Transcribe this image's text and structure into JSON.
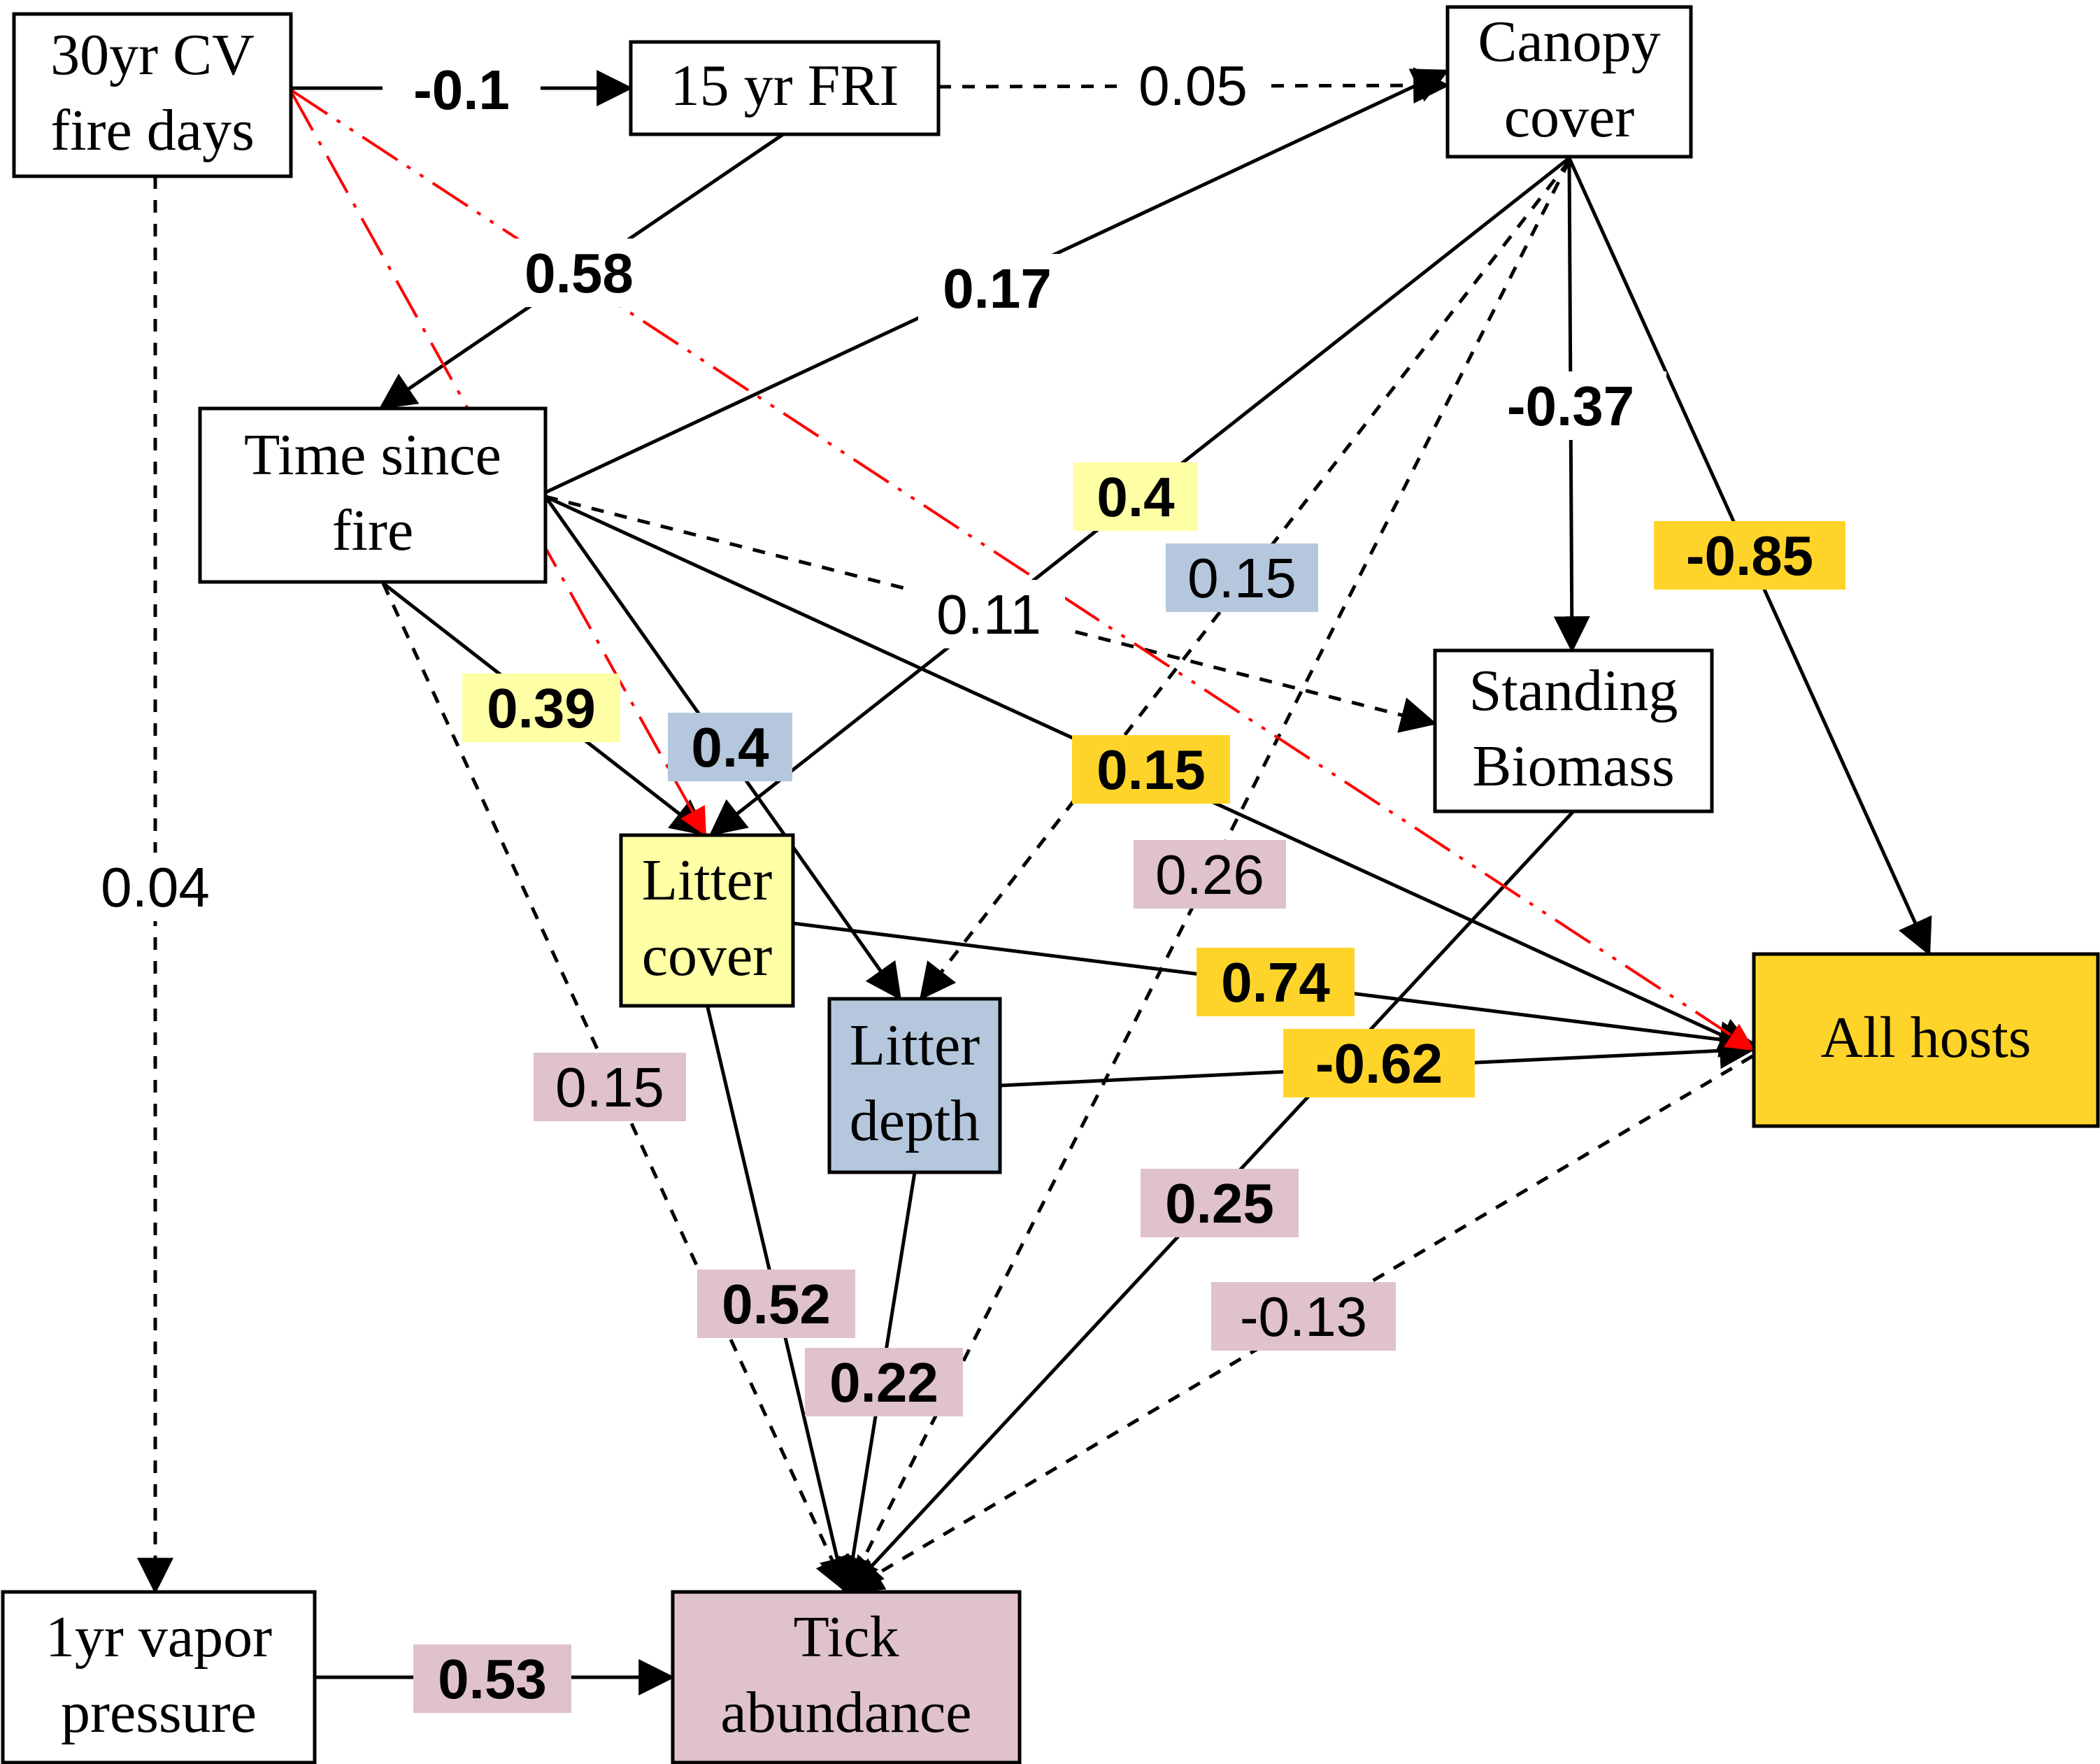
{
  "colors": {
    "litter_cover": "#ffffa6",
    "litter_depth": "#b4c7dc",
    "all_hosts": "#ffd42a",
    "tick": "#dfc2cb",
    "white": "#ffffff",
    "red": "#ff0000",
    "black": "#000000"
  },
  "nodes": [
    {
      "id": "cv_fire_days",
      "lines": [
        "30yr CV",
        "fire days"
      ],
      "fill": "white"
    },
    {
      "id": "fri15",
      "lines": [
        "15 yr FRI"
      ],
      "fill": "white"
    },
    {
      "id": "canopy_cover",
      "lines": [
        "Canopy",
        "cover"
      ],
      "fill": "white"
    },
    {
      "id": "time_since_fire",
      "lines": [
        "Time since",
        "fire"
      ],
      "fill": "white"
    },
    {
      "id": "standing_biomass",
      "lines": [
        "Standing",
        "Biomass"
      ],
      "fill": "white"
    },
    {
      "id": "litter_cover",
      "lines": [
        "Litter",
        "cover"
      ],
      "fill": "litter_cover"
    },
    {
      "id": "litter_depth",
      "lines": [
        "Litter",
        "depth"
      ],
      "fill": "litter_depth"
    },
    {
      "id": "all_hosts",
      "lines": [
        "All hosts"
      ],
      "fill": "all_hosts"
    },
    {
      "id": "vapor_pressure",
      "lines": [
        "1yr vapor",
        "pressure"
      ],
      "fill": "white"
    },
    {
      "id": "tick_abundance",
      "lines": [
        "Tick",
        "abundance"
      ],
      "fill": "tick"
    }
  ],
  "edges": [
    {
      "id": "cv-fri",
      "from": "cv_fire_days",
      "to": "fri15",
      "style": "solid",
      "label": "-0.1",
      "bold": true,
      "label_bg": "white"
    },
    {
      "id": "fri-canopy",
      "from": "fri15",
      "to": "canopy_cover",
      "style": "dashed",
      "label": "0.05",
      "bold": false,
      "label_bg": "white"
    },
    {
      "id": "fri-tsf",
      "from": "fri15",
      "to": "time_since_fire",
      "style": "solid",
      "label": "0.58",
      "bold": true,
      "label_bg": "white"
    },
    {
      "id": "tsf-canopy",
      "from": "time_since_fire",
      "to": "canopy_cover",
      "style": "solid",
      "label": "0.17",
      "bold": true,
      "label_bg": "white"
    },
    {
      "id": "cv-vapor",
      "from": "cv_fire_days",
      "to": "vapor_pressure",
      "style": "dashed",
      "label": "0.04",
      "bold": false,
      "label_bg": "white"
    },
    {
      "id": "canopy-litter",
      "from": "canopy_cover",
      "to": "litter_cover",
      "style": "solid",
      "label": "0.4",
      "bold": true,
      "label_bg": "litter_cover"
    },
    {
      "id": "canopy-depth",
      "from": "canopy_cover",
      "to": "litter_depth",
      "style": "dashed",
      "label": "0.15",
      "bold": false,
      "label_bg": "litter_depth"
    },
    {
      "id": "canopy-biomass",
      "from": "canopy_cover",
      "to": "standing_biomass",
      "style": "solid",
      "label": "-0.37",
      "bold": true,
      "label_bg": "white"
    },
    {
      "id": "canopy-hosts",
      "from": "canopy_cover",
      "to": "all_hosts",
      "style": "solid",
      "label": "-0.85",
      "bold": true,
      "label_bg": "all_hosts"
    },
    {
      "id": "tsf-biomass",
      "from": "time_since_fire",
      "to": "standing_biomass",
      "style": "dashed",
      "label": "0.11",
      "bold": false,
      "label_bg": "white"
    },
    {
      "id": "tsf-litter",
      "from": "time_since_fire",
      "to": "litter_cover",
      "style": "solid",
      "label": "0.39",
      "bold": true,
      "label_bg": "litter_cover"
    },
    {
      "id": "tsf-depth",
      "from": "time_since_fire",
      "to": "litter_depth",
      "style": "solid",
      "label": "0.4",
      "bold": true,
      "label_bg": "litter_depth"
    },
    {
      "id": "tsf-hosts",
      "from": "time_since_fire",
      "to": "all_hosts",
      "style": "solid",
      "label": "0.15",
      "bold": true,
      "label_bg": "all_hosts"
    },
    {
      "id": "canopy-tick",
      "from": "canopy_cover",
      "to": "tick_abundance",
      "style": "dashed",
      "label": "0.26",
      "bold": false,
      "label_bg": "tick"
    },
    {
      "id": "tsf-tick",
      "from": "time_since_fire",
      "to": "tick_abundance",
      "style": "dashed",
      "label": "0.15",
      "bold": false,
      "label_bg": "tick"
    },
    {
      "id": "littercover-hosts",
      "from": "litter_cover",
      "to": "all_hosts",
      "style": "solid",
      "label": "0.74",
      "bold": true,
      "label_bg": "all_hosts"
    },
    {
      "id": "depth-hosts",
      "from": "litter_depth",
      "to": "all_hosts",
      "style": "solid",
      "label": "-0.62",
      "bold": true,
      "label_bg": "all_hosts"
    },
    {
      "id": "biomass-tick",
      "from": "standing_biomass",
      "to": "tick_abundance",
      "style": "solid",
      "label": "0.25",
      "bold": true,
      "label_bg": "tick"
    },
    {
      "id": "hosts-tick",
      "from": "all_hosts",
      "to": "tick_abundance",
      "style": "dashed",
      "label": "-0.13",
      "bold": false,
      "label_bg": "tick"
    },
    {
      "id": "littercover-tick",
      "from": "litter_cover",
      "to": "tick_abundance",
      "style": "solid",
      "label": "0.52",
      "bold": true,
      "label_bg": "tick"
    },
    {
      "id": "depth-tick",
      "from": "litter_depth",
      "to": "tick_abundance",
      "style": "solid",
      "label": "0.22",
      "bold": true,
      "label_bg": "tick"
    },
    {
      "id": "vapor-tick",
      "from": "vapor_pressure",
      "to": "tick_abundance",
      "style": "solid",
      "label": "0.53",
      "bold": true,
      "label_bg": "tick"
    },
    {
      "id": "cv-hosts",
      "from": "cv_fire_days",
      "to": "all_hosts",
      "style": "red-dashdotdot",
      "label": "",
      "bold": false,
      "label_bg": "white"
    },
    {
      "id": "cv-litter",
      "from": "cv_fire_days",
      "to": "litter_cover",
      "style": "red-dashdot",
      "label": "",
      "bold": false,
      "label_bg": "white"
    }
  ]
}
